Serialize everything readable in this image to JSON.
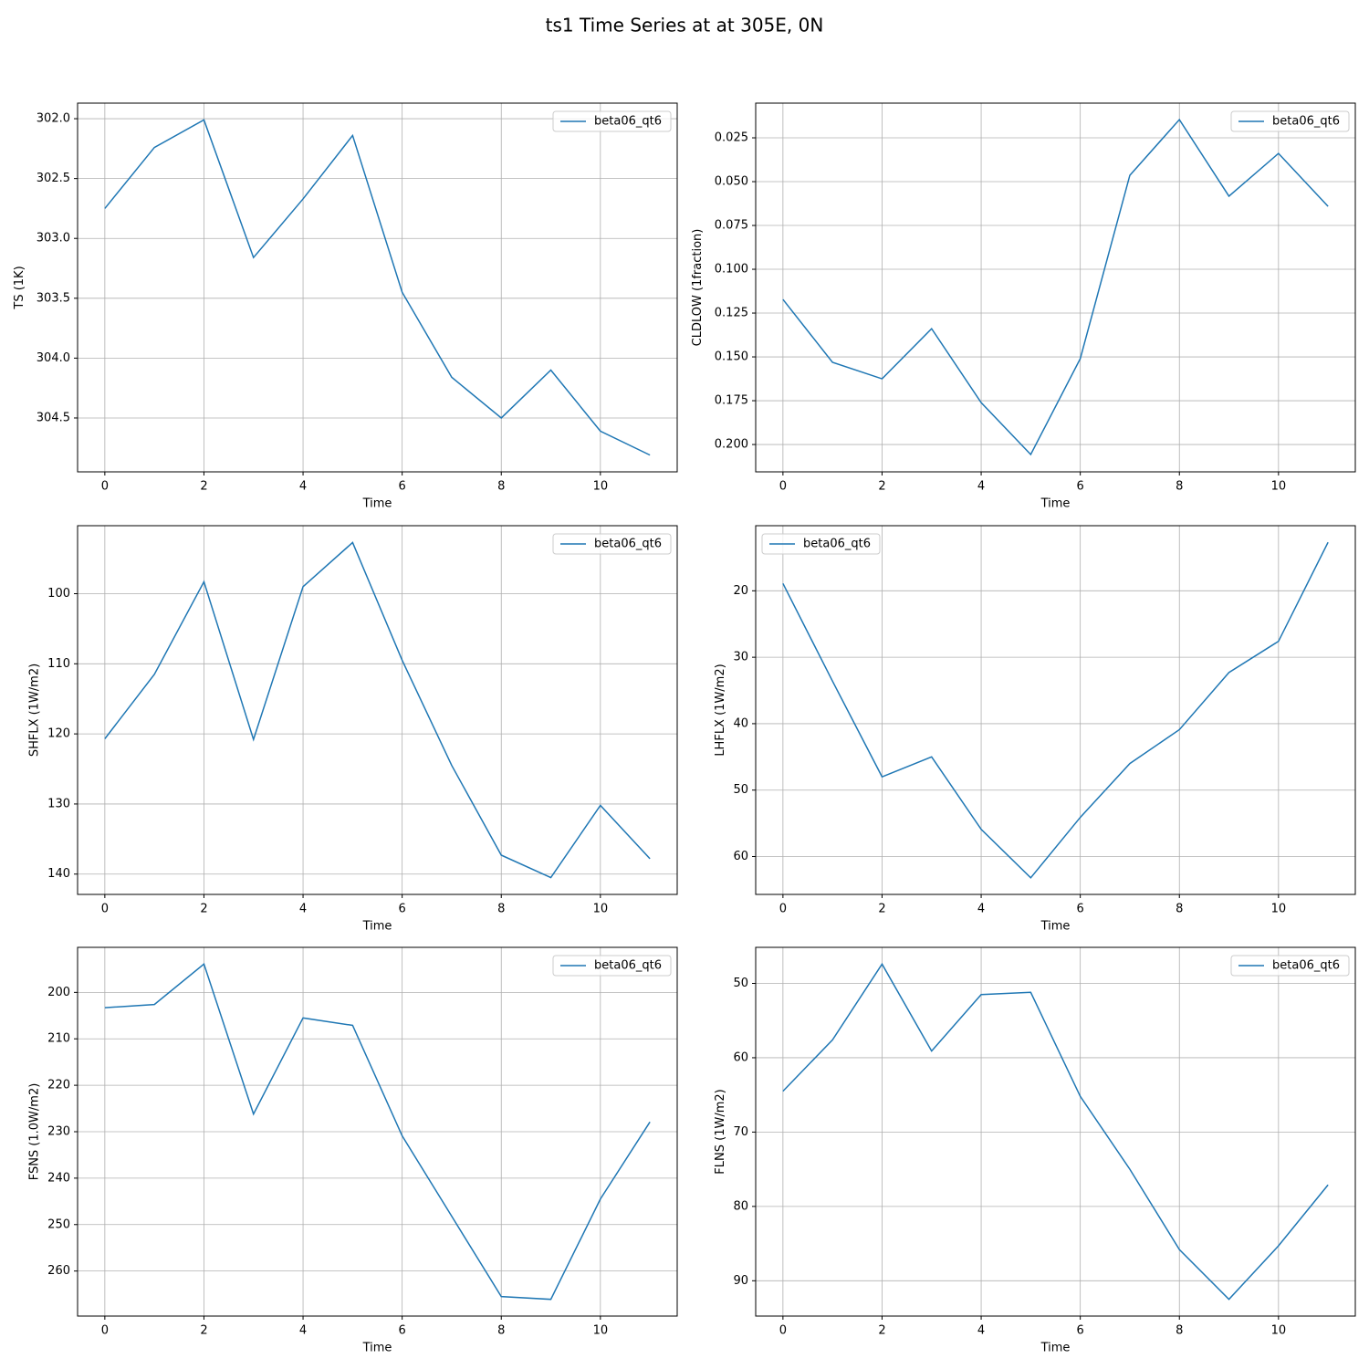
{
  "title": "ts1 Time Series at at 305E, 0N",
  "chart_data": [
    {
      "type": "line",
      "xlabel": "Time",
      "ylabel": "TS (1K)",
      "x": [
        0,
        1,
        2,
        3,
        4,
        5,
        6,
        7,
        8,
        9,
        10,
        11
      ],
      "series": [
        {
          "name": "beta06_qt6",
          "color": "#1f77b4",
          "values": [
            302.75,
            302.24,
            302.01,
            303.16,
            302.67,
            302.14,
            303.45,
            304.16,
            304.5,
            304.1,
            304.61,
            304.81
          ]
        }
      ],
      "xlim": [
        -0.55,
        11.55
      ],
      "ylim": [
        304.95,
        301.87
      ],
      "xticks": [
        0,
        2,
        4,
        6,
        8,
        10
      ],
      "yticks": [
        {
          "value": 302,
          "label": "302.0"
        },
        302.5,
        {
          "value": 303,
          "label": "303.0"
        },
        303.5,
        {
          "value": 304,
          "label": "304.0"
        },
        304.5
      ],
      "grid": true,
      "legend": "upper right"
    },
    {
      "type": "line",
      "xlabel": "Time",
      "ylabel": "CLDLOW (1fraction)",
      "x": [
        0,
        1,
        2,
        3,
        4,
        5,
        6,
        7,
        8,
        9,
        10,
        11
      ],
      "series": [
        {
          "name": "beta06_qt6",
          "color": "#1f77b4",
          "values": [
            0.1172,
            0.1531,
            0.1625,
            0.1339,
            0.1761,
            0.2057,
            0.151,
            0.0464,
            0.0146,
            0.0583,
            0.0339,
            0.0641
          ]
        }
      ],
      "xlim": [
        -0.55,
        11.55
      ],
      "ylim": [
        0.2156,
        0.0052
      ],
      "xticks": [
        0,
        2,
        4,
        6,
        8,
        10
      ],
      "yticks": [
        0.025,
        {
          "value": 0.05,
          "label": "0.050"
        },
        0.075,
        {
          "value": 0.1,
          "label": "0.100"
        },
        0.125,
        {
          "value": 0.15,
          "label": "0.150"
        },
        0.175,
        {
          "value": 0.2,
          "label": "0.200"
        }
      ],
      "grid": true,
      "legend": "upper right"
    },
    {
      "type": "line",
      "xlabel": "Time",
      "ylabel": "SHFLX (1W/m2)",
      "x": [
        0,
        1,
        2,
        3,
        4,
        5,
        6,
        7,
        8,
        9,
        10,
        11
      ],
      "series": [
        {
          "name": "beta06_qt6",
          "color": "#1f77b4",
          "values": [
            120.7,
            111.5,
            98.3,
            120.8,
            99.0,
            92.7,
            109.5,
            124.5,
            137.3,
            140.5,
            130.2,
            137.8
          ]
        }
      ],
      "xlim": [
        -0.55,
        11.55
      ],
      "ylim": [
        142.9,
        90.3
      ],
      "xticks": [
        0,
        2,
        4,
        6,
        8,
        10
      ],
      "yticks": [
        100,
        110,
        120,
        130,
        140
      ],
      "grid": true,
      "legend": "upper right"
    },
    {
      "type": "line",
      "xlabel": "Time",
      "ylabel": "LHFLX (1W/m2)",
      "x": [
        0,
        1,
        2,
        3,
        4,
        5,
        6,
        7,
        8,
        9,
        10,
        11
      ],
      "series": [
        {
          "name": "beta06_qt6",
          "color": "#1f77b4",
          "values": [
            18.9,
            33.6,
            48.0,
            45.0,
            55.9,
            63.2,
            54.1,
            46.0,
            40.9,
            32.3,
            27.6,
            12.7
          ]
        }
      ],
      "xlim": [
        -0.55,
        11.55
      ],
      "ylim": [
        65.7,
        10.2
      ],
      "xticks": [
        0,
        2,
        4,
        6,
        8,
        10
      ],
      "yticks": [
        20,
        30,
        40,
        50,
        60
      ],
      "grid": true,
      "legend": "upper left"
    },
    {
      "type": "line",
      "xlabel": "Time",
      "ylabel": "FSNS (1.0W/m2)",
      "x": [
        0,
        1,
        2,
        3,
        4,
        5,
        6,
        7,
        8,
        9,
        10,
        11
      ],
      "series": [
        {
          "name": "beta06_qt6",
          "color": "#1f77b4",
          "values": [
            203.3,
            202.6,
            193.9,
            226.2,
            205.5,
            207.1,
            230.9,
            248.2,
            265.5,
            266.1,
            244.5,
            227.9
          ]
        }
      ],
      "xlim": [
        -0.55,
        11.55
      ],
      "ylim": [
        269.7,
        190.3
      ],
      "xticks": [
        0,
        2,
        4,
        6,
        8,
        10
      ],
      "yticks": [
        200,
        210,
        220,
        230,
        240,
        250,
        260
      ],
      "grid": true,
      "legend": "upper right"
    },
    {
      "type": "line",
      "xlabel": "Time",
      "ylabel": "FLNS (1W/m2)",
      "x": [
        0,
        1,
        2,
        3,
        4,
        5,
        6,
        7,
        8,
        9,
        10,
        11
      ],
      "series": [
        {
          "name": "beta06_qt6",
          "color": "#1f77b4",
          "values": [
            64.5,
            57.6,
            47.4,
            59.1,
            51.5,
            51.2,
            65.2,
            75.0,
            85.8,
            92.5,
            85.3,
            77.1
          ]
        }
      ],
      "xlim": [
        -0.55,
        11.55
      ],
      "ylim": [
        94.75,
        45.15
      ],
      "xticks": [
        0,
        2,
        4,
        6,
        8,
        10
      ],
      "yticks": [
        50,
        60,
        70,
        80,
        90
      ],
      "grid": true,
      "legend": "upper right"
    }
  ]
}
